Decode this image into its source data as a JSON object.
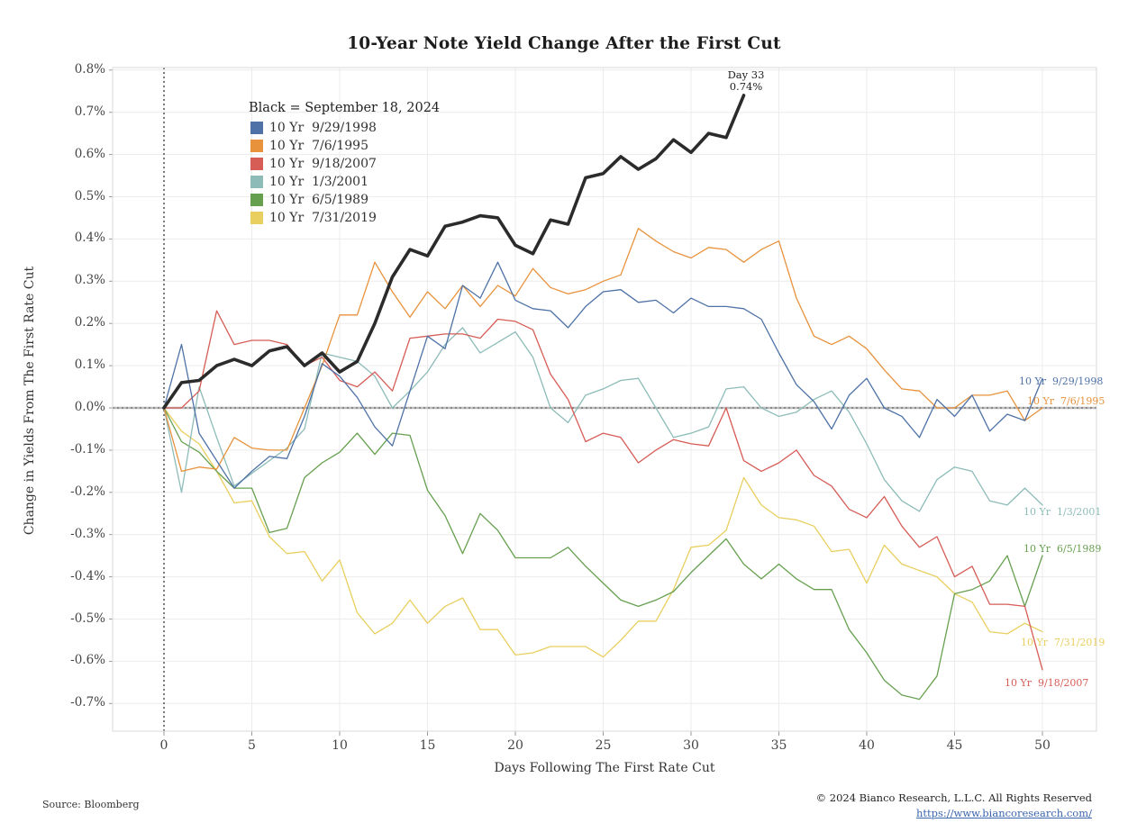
{
  "title": "10-Year Note Yield Change After the First Cut",
  "legend": {
    "header": "Black = September 18, 2024",
    "items": [
      {
        "label": "10 Yr  9/29/1998",
        "color": "#4e72a7"
      },
      {
        "label": "10 Yr  7/6/1995",
        "color": "#e8923c"
      },
      {
        "label": "10 Yr  9/18/2007",
        "color": "#d65c56"
      },
      {
        "label": "10 Yr  1/3/2001",
        "color": "#8dbcb8"
      },
      {
        "label": "10 Yr  6/5/1989",
        "color": "#66a04f"
      },
      {
        "label": "10 Yr  7/31/2019",
        "color": "#e9cf5f"
      }
    ]
  },
  "annotation": {
    "line1": "Day 33",
    "line2": "0.74%"
  },
  "chart_data": {
    "type": "line",
    "title": "10-Year Note Yield Change After the First Cut",
    "xlabel": "Days Following The First Rate Cut",
    "ylabel": "Change in Yields From The First Rate Cut",
    "x_ticks": [
      0,
      5,
      10,
      15,
      20,
      25,
      30,
      35,
      40,
      45,
      50
    ],
    "y_ticks": [
      0.8,
      0.7,
      0.6,
      0.5,
      0.4,
      0.3,
      0.2,
      0.1,
      0.0,
      -0.1,
      -0.2,
      -0.3,
      -0.4,
      -0.5,
      -0.6,
      -0.7
    ],
    "y_tick_suffix": "%",
    "xlim": [
      0,
      50
    ],
    "ylim": [
      -0.75,
      0.8
    ],
    "grid": true,
    "legend_position": "upper-left-inside",
    "series": [
      {
        "id": "sept2024",
        "name": "September 18, 2024",
        "color": "#2b2b2b",
        "width": 3.6,
        "values": [
          0,
          0.06,
          0.065,
          0.1,
          0.115,
          0.1,
          0.135,
          0.145,
          0.1,
          0.13,
          0.085,
          0.11,
          0.2,
          0.31,
          0.375,
          0.36,
          0.43,
          0.44,
          0.455,
          0.45,
          0.385,
          0.365,
          0.445,
          0.435,
          0.545,
          0.555,
          0.595,
          0.565,
          0.59,
          0.635,
          0.605,
          0.65,
          0.64,
          0.74
        ]
      },
      {
        "id": "y1998",
        "name": "10 Yr 9/29/1998",
        "color": "#4e72a7",
        "width": 1.3,
        "end_label": "10 Yr  9/29/1998",
        "values": [
          0,
          0.15,
          -0.06,
          -0.125,
          -0.19,
          -0.15,
          -0.115,
          -0.12,
          -0.02,
          0.105,
          0.075,
          0.025,
          -0.045,
          -0.09,
          0.04,
          0.17,
          0.14,
          0.29,
          0.26,
          0.345,
          0.255,
          0.235,
          0.23,
          0.19,
          0.24,
          0.275,
          0.28,
          0.25,
          0.255,
          0.225,
          0.26,
          0.24,
          0.24,
          0.235,
          0.21,
          0.13,
          0.055,
          0.015,
          -0.05,
          0.03,
          0.07,
          0.0,
          -0.02,
          -0.07,
          0.02,
          -0.02,
          0.03,
          -0.055,
          -0.015,
          -0.03,
          0.07
        ]
      },
      {
        "id": "y1995",
        "name": "10 Yr 7/6/1995",
        "color": "#e8923c",
        "width": 1.3,
        "end_label": "10 Yr  7/6/1995",
        "values": [
          0,
          -0.15,
          -0.14,
          -0.145,
          -0.07,
          -0.095,
          -0.1,
          -0.1,
          0.0,
          0.1,
          0.22,
          0.22,
          0.345,
          0.275,
          0.215,
          0.275,
          0.235,
          0.29,
          0.24,
          0.29,
          0.265,
          0.33,
          0.285,
          0.27,
          0.28,
          0.3,
          0.315,
          0.425,
          0.395,
          0.37,
          0.355,
          0.38,
          0.375,
          0.345,
          0.375,
          0.395,
          0.26,
          0.17,
          0.15,
          0.17,
          0.14,
          0.09,
          0.045,
          0.04,
          0.0,
          0.0,
          0.03,
          0.03,
          0.04,
          -0.03,
          0.0
        ]
      },
      {
        "id": "y2007",
        "name": "10 Yr 9/18/2007",
        "color": "#d65c56",
        "width": 1.3,
        "end_label": "10 Yr  9/18/2007",
        "values": [
          0,
          0.0,
          0.04,
          0.23,
          0.15,
          0.16,
          0.16,
          0.15,
          0.1,
          0.12,
          0.065,
          0.05,
          0.085,
          0.04,
          0.165,
          0.17,
          0.175,
          0.175,
          0.165,
          0.21,
          0.205,
          0.185,
          0.08,
          0.02,
          -0.08,
          -0.06,
          -0.07,
          -0.13,
          -0.1,
          -0.075,
          -0.085,
          -0.09,
          0.0,
          -0.125,
          -0.15,
          -0.13,
          -0.1,
          -0.16,
          -0.185,
          -0.24,
          -0.26,
          -0.21,
          -0.28,
          -0.33,
          -0.305,
          -0.4,
          -0.375,
          -0.465,
          -0.465,
          -0.47,
          -0.62
        ]
      },
      {
        "id": "y2001",
        "name": "10 Yr 1/3/2001",
        "color": "#8dbcb8",
        "width": 1.3,
        "end_label": "10 Yr  1/3/2001",
        "values": [
          0,
          -0.2,
          0.05,
          -0.07,
          -0.185,
          -0.155,
          -0.125,
          -0.095,
          -0.05,
          0.13,
          0.12,
          0.11,
          0.075,
          0.0,
          0.04,
          0.085,
          0.15,
          0.19,
          0.13,
          0.155,
          0.18,
          0.12,
          0.0,
          -0.035,
          0.03,
          0.045,
          0.065,
          0.07,
          0.0,
          -0.07,
          -0.06,
          -0.045,
          0.045,
          0.05,
          0.0,
          -0.02,
          -0.01,
          0.02,
          0.04,
          -0.01,
          -0.085,
          -0.17,
          -0.22,
          -0.245,
          -0.17,
          -0.14,
          -0.15,
          -0.22,
          -0.23,
          -0.19,
          -0.23
        ]
      },
      {
        "id": "y1989",
        "name": "10 Yr 6/5/1989",
        "color": "#66a04f",
        "width": 1.3,
        "end_label": "10 Yr  6/5/1989",
        "values": [
          0,
          -0.08,
          -0.105,
          -0.15,
          -0.19,
          -0.19,
          -0.295,
          -0.285,
          -0.165,
          -0.13,
          -0.105,
          -0.06,
          -0.11,
          -0.06,
          -0.065,
          -0.195,
          -0.255,
          -0.345,
          -0.25,
          -0.29,
          -0.355,
          -0.355,
          -0.355,
          -0.33,
          -0.375,
          -0.415,
          -0.455,
          -0.47,
          -0.455,
          -0.435,
          -0.39,
          -0.35,
          -0.31,
          -0.37,
          -0.405,
          -0.37,
          -0.405,
          -0.43,
          -0.43,
          -0.525,
          -0.58,
          -0.645,
          -0.68,
          -0.69,
          -0.635,
          -0.44,
          -0.43,
          -0.41,
          -0.35,
          -0.47,
          -0.35
        ]
      },
      {
        "id": "y2019",
        "name": "10 Yr 7/31/2019",
        "color": "#e9cf5f",
        "width": 1.3,
        "end_label": "10 Yr  7/31/2019",
        "values": [
          0,
          -0.055,
          -0.085,
          -0.15,
          -0.225,
          -0.22,
          -0.305,
          -0.345,
          -0.34,
          -0.41,
          -0.36,
          -0.485,
          -0.535,
          -0.51,
          -0.455,
          -0.51,
          -0.47,
          -0.45,
          -0.525,
          -0.525,
          -0.585,
          -0.58,
          -0.565,
          -0.565,
          -0.565,
          -0.59,
          -0.55,
          -0.505,
          -0.505,
          -0.43,
          -0.33,
          -0.325,
          -0.29,
          -0.165,
          -0.23,
          -0.26,
          -0.265,
          -0.28,
          -0.34,
          -0.335,
          -0.415,
          -0.325,
          -0.37,
          -0.385,
          -0.4,
          -0.44,
          -0.46,
          -0.53,
          -0.535,
          -0.51,
          -0.53
        ]
      }
    ],
    "annotation": {
      "text": "Day 33 0.74%",
      "x": 33,
      "y": 0.74
    }
  },
  "footer": {
    "source": "Source: Bloomberg",
    "copyright": "© 2024 Bianco Research, L.L.C. All Rights Reserved",
    "link": "https://www.biancoresearch.com/"
  }
}
